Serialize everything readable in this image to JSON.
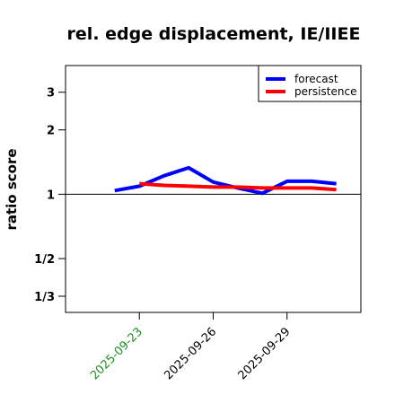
{
  "chart_data": {
    "type": "line",
    "title": "rel. edge displacement, IE/IIEE",
    "ylabel": "ratio score",
    "xlabel": "",
    "y_scale": "log",
    "ylim": [
      0.28,
      4.0
    ],
    "y_ticks": [
      {
        "value": 0.3333,
        "label": "1/3"
      },
      {
        "value": 0.5,
        "label": "1/2"
      },
      {
        "value": 1,
        "label": "1"
      },
      {
        "value": 2,
        "label": "2"
      },
      {
        "value": 3,
        "label": "3"
      }
    ],
    "reference_line": 1,
    "xlim": [
      "2025-09-20",
      "2025-10-02"
    ],
    "x_ticks": [
      {
        "value": "2025-09-23",
        "label": "2025-09-23",
        "color": "#228B22"
      },
      {
        "value": "2025-09-26",
        "label": "2025-09-26",
        "color": "#000000"
      },
      {
        "value": "2025-09-29",
        "label": "2025-09-29",
        "color": "#000000"
      }
    ],
    "grid": false,
    "legend_position": "top-right",
    "series": [
      {
        "name": "forecast",
        "color": "#0000FF",
        "points": [
          {
            "x": "2025-09-22",
            "y": 1.04
          },
          {
            "x": "2025-09-23",
            "y": 1.09
          },
          {
            "x": "2025-09-24",
            "y": 1.22
          },
          {
            "x": "2025-09-25",
            "y": 1.33
          },
          {
            "x": "2025-09-26",
            "y": 1.14
          },
          {
            "x": "2025-09-27",
            "y": 1.07
          },
          {
            "x": "2025-09-28",
            "y": 1.01
          },
          {
            "x": "2025-09-29",
            "y": 1.15
          },
          {
            "x": "2025-09-30",
            "y": 1.15
          },
          {
            "x": "2025-10-01",
            "y": 1.12
          }
        ]
      },
      {
        "name": "persistence",
        "color": "#FF0000",
        "points": [
          {
            "x": "2025-09-23",
            "y": 1.12
          },
          {
            "x": "2025-09-24",
            "y": 1.1
          },
          {
            "x": "2025-09-25",
            "y": 1.09
          },
          {
            "x": "2025-09-26",
            "y": 1.08
          },
          {
            "x": "2025-09-27",
            "y": 1.08
          },
          {
            "x": "2025-09-28",
            "y": 1.07
          },
          {
            "x": "2025-09-29",
            "y": 1.07
          },
          {
            "x": "2025-09-30",
            "y": 1.07
          },
          {
            "x": "2025-10-01",
            "y": 1.05
          }
        ]
      }
    ]
  }
}
